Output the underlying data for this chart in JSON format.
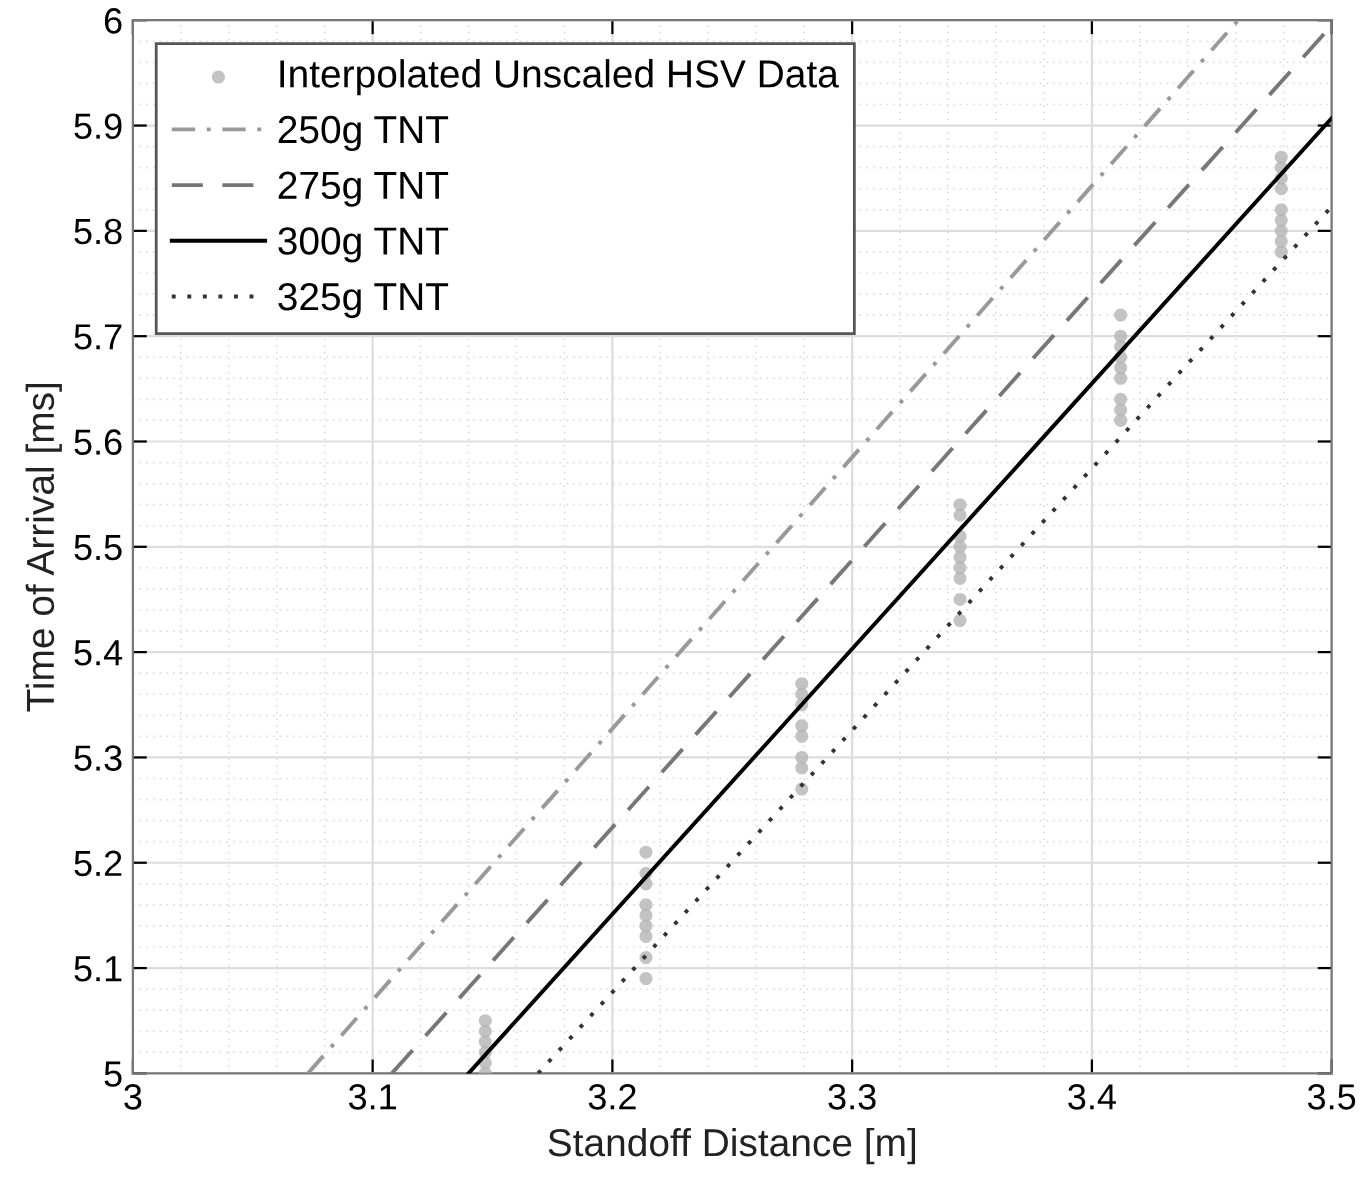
{
  "chart_data": {
    "type": "line",
    "xlabel": "Standoff Distance [m]",
    "ylabel": "Time of Arrival [ms]",
    "xlim": [
      3,
      3.5
    ],
    "ylim": [
      5,
      6
    ],
    "xticks": [
      3,
      3.1,
      3.2,
      3.3,
      3.4,
      3.5
    ],
    "yticks": [
      5,
      5.1,
      5.2,
      5.3,
      5.4,
      5.5,
      5.6,
      5.7,
      5.8,
      5.9,
      6
    ],
    "grid": true,
    "legend": "top left",
    "series": [
      {
        "name": "Interpolated Unscaled HSV Data",
        "type": "scatter",
        "marker": "circle",
        "color": "#b4b4b4",
        "x": [
          3.147,
          3.147,
          3.147,
          3.147,
          3.147,
          3.147,
          3.214,
          3.214,
          3.214,
          3.214,
          3.214,
          3.214,
          3.214,
          3.214,
          3.214,
          3.279,
          3.279,
          3.279,
          3.279,
          3.279,
          3.279,
          3.279,
          3.279,
          3.345,
          3.345,
          3.345,
          3.345,
          3.345,
          3.345,
          3.345,
          3.345,
          3.345,
          3.412,
          3.412,
          3.412,
          3.412,
          3.412,
          3.412,
          3.412,
          3.412,
          3.412,
          3.479,
          3.479,
          3.479,
          3.479,
          3.479,
          3.479,
          3.479,
          3.479,
          3.479
        ],
        "values": [
          5.0,
          5.01,
          5.02,
          5.03,
          5.04,
          5.05,
          5.09,
          5.11,
          5.13,
          5.14,
          5.15,
          5.16,
          5.18,
          5.19,
          5.21,
          5.27,
          5.29,
          5.3,
          5.32,
          5.33,
          5.35,
          5.36,
          5.37,
          5.43,
          5.45,
          5.47,
          5.48,
          5.49,
          5.5,
          5.51,
          5.53,
          5.54,
          5.62,
          5.63,
          5.64,
          5.66,
          5.67,
          5.68,
          5.69,
          5.7,
          5.72,
          5.78,
          5.79,
          5.8,
          5.81,
          5.82,
          5.84,
          5.85,
          5.86,
          5.87
        ]
      },
      {
        "name": "250g TNT",
        "line_style": "dashdot",
        "color": "#999999",
        "x": [
          3.073,
          3.461
        ],
        "values": [
          5,
          6
        ]
      },
      {
        "name": "275g TNT",
        "line_style": "dashed",
        "color": "#777777",
        "x": [
          3.108,
          3.5
        ],
        "values": [
          5,
          5.995
        ]
      },
      {
        "name": "300g TNT",
        "line_style": "solid",
        "color": "#000000",
        "x": [
          3.14,
          3.5
        ],
        "values": [
          5,
          5.907
        ]
      },
      {
        "name": "325g TNT",
        "line_style": "dotted",
        "color": "#333333",
        "x": [
          3.169,
          3.5
        ],
        "values": [
          5,
          5.823
        ]
      }
    ]
  }
}
